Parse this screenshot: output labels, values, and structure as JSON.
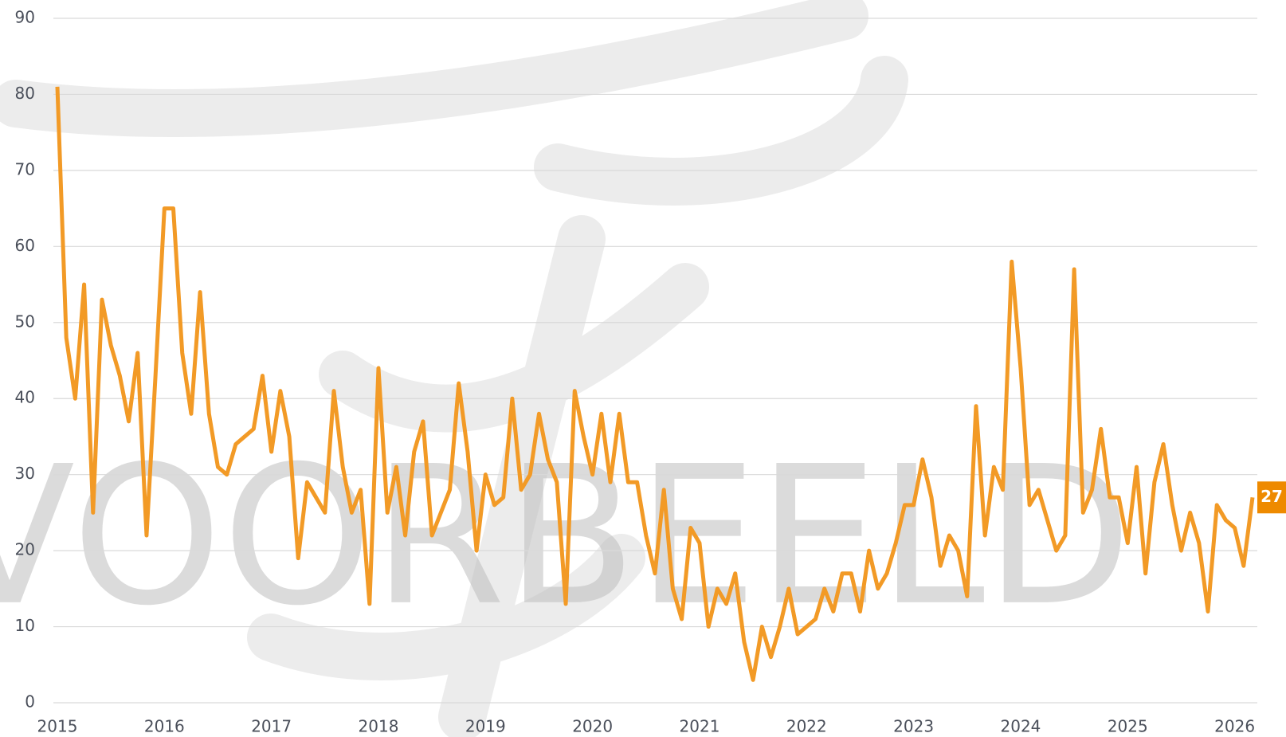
{
  "chart_data": {
    "type": "line",
    "watermark": "VOORBEELD",
    "categories": [
      "2015",
      null,
      null,
      null,
      null,
      null,
      null,
      null,
      null,
      null,
      null,
      null,
      "2016",
      null,
      null,
      null,
      null,
      null,
      null,
      null,
      null,
      null,
      null,
      null,
      "2017",
      null,
      null,
      null,
      null,
      null,
      null,
      null,
      null,
      null,
      null,
      null,
      "2018",
      null,
      null,
      null,
      null,
      null,
      null,
      null,
      null,
      null,
      null,
      null,
      "2019",
      null,
      null,
      null,
      null,
      null,
      null,
      null,
      null,
      null,
      null,
      null,
      "2020",
      null,
      null,
      null,
      null,
      null,
      null,
      null,
      null,
      null,
      null,
      null,
      "2021",
      null,
      null,
      null,
      null,
      null,
      null,
      null,
      null,
      null,
      null,
      null,
      "2022",
      null,
      null,
      null,
      null,
      null,
      null,
      null,
      null,
      null,
      null,
      null,
      "2023",
      null,
      null,
      null,
      null,
      null,
      null,
      null,
      null,
      null,
      null,
      null,
      "2024",
      null,
      null,
      null,
      null,
      null,
      null,
      null,
      null,
      null,
      null,
      null,
      "2025",
      null,
      null,
      null,
      null,
      null,
      null,
      null,
      null,
      null,
      null,
      null,
      "2026",
      null,
      null
    ],
    "series": [
      {
        "color": "#f29a26",
        "values": [
          81,
          48,
          40,
          55,
          25,
          53,
          47,
          43,
          37,
          46,
          22,
          43,
          65,
          65,
          46,
          38,
          54,
          38,
          31,
          30,
          34,
          35,
          36,
          43,
          33,
          41,
          35,
          19,
          29,
          27,
          25,
          41,
          31,
          25,
          28,
          13,
          44,
          25,
          31,
          22,
          33,
          37,
          22,
          25,
          28,
          42,
          33,
          20,
          30,
          26,
          27,
          40,
          28,
          30,
          38,
          32,
          29,
          13,
          41,
          35,
          30,
          38,
          29,
          38,
          29,
          29,
          22,
          17,
          28,
          15,
          11,
          23,
          21,
          10,
          15,
          13,
          17,
          8,
          3,
          10,
          6,
          10,
          15,
          9,
          10,
          11,
          15,
          12,
          17,
          17,
          12,
          20,
          15,
          17,
          21,
          26,
          26,
          32,
          27,
          18,
          22,
          20,
          14,
          39,
          22,
          31,
          28,
          58,
          44,
          26,
          28,
          24,
          20,
          22,
          57,
          25,
          28,
          36,
          27,
          27,
          21,
          31,
          17,
          29,
          34,
          26,
          20,
          25,
          21,
          12,
          26,
          24,
          23,
          18,
          27
        ]
      }
    ],
    "badge_color": "#ee8a00",
    "ylim": [
      0,
      90
    ],
    "yticks": [
      0,
      10,
      20,
      30,
      40,
      50,
      60,
      70,
      80,
      90
    ],
    "grid": true
  }
}
